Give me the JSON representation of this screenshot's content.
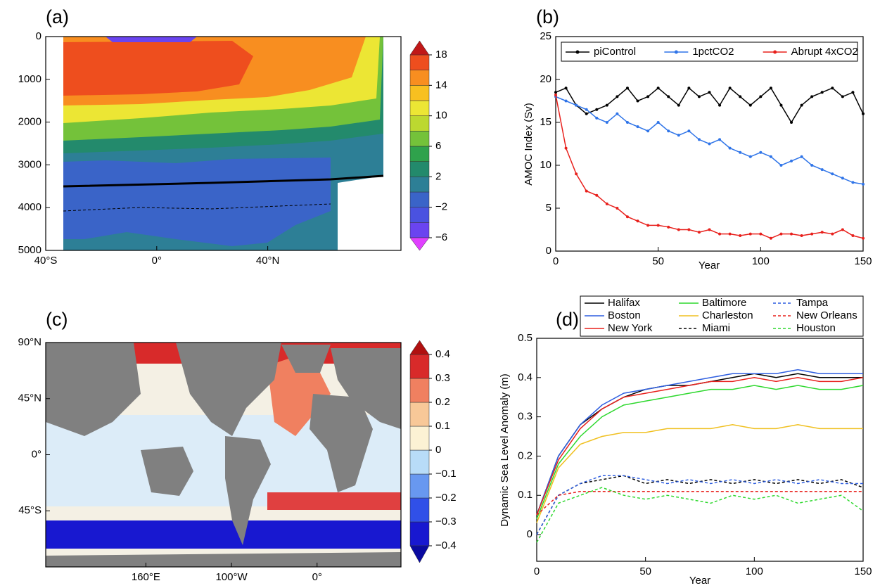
{
  "chart_data": [
    {
      "type": "contour",
      "title": "(a)",
      "xlim": [
        -40,
        88
      ],
      "xticks": [
        {
          "value": -40,
          "label": "40°S"
        },
        {
          "value": 0,
          "label": "0°"
        },
        {
          "value": 40,
          "label": "40°N"
        }
      ],
      "ylim": [
        0,
        5000
      ],
      "y_inverted": true,
      "yticks": [
        0,
        1000,
        2000,
        3000,
        4000,
        5000
      ],
      "colorbar": {
        "lim": [
          -6,
          18
        ],
        "ticks": [
          18,
          14,
          10,
          6,
          2,
          {
            "value": -2,
            "label": "−2"
          },
          {
            "value": -6,
            "label": "−6"
          }
        ],
        "colors": [
          "#6a44f0",
          "#4a52e0",
          "#3a64c8",
          "#2d7f96",
          "#238a6c",
          "#2fa24c",
          "#74c23a",
          "#bcd830",
          "#ece634",
          "#f8c020",
          "#f88e20",
          "#ee4e1e"
        ],
        "under": "#e040ff",
        "over": "#c01818"
      }
    },
    {
      "type": "line",
      "title": "(b)",
      "xlabel": "Year",
      "ylabel": "AMOC Index (Sv)",
      "markers": true,
      "legend": "top",
      "x": [
        0,
        5,
        10,
        15,
        20,
        25,
        30,
        35,
        40,
        45,
        50,
        55,
        60,
        65,
        70,
        75,
        80,
        85,
        90,
        95,
        100,
        105,
        110,
        115,
        120,
        125,
        130,
        135,
        140,
        145,
        150
      ],
      "xlim": [
        0,
        150
      ],
      "xticks": [
        0,
        50,
        100,
        150
      ],
      "ylim": [
        0,
        25
      ],
      "yticks": [
        0,
        5,
        10,
        15,
        20,
        25
      ],
      "series": [
        {
          "name": "piControl",
          "color": "#000000",
          "values": [
            18.5,
            19,
            17,
            16,
            16.5,
            17,
            18,
            19,
            17.5,
            18,
            19,
            18,
            17,
            19,
            18,
            18.5,
            17,
            19,
            18,
            17,
            18,
            19,
            17,
            15,
            17,
            18,
            18.5,
            19,
            18,
            18.5,
            16
          ]
        },
        {
          "name": "1pctCO2",
          "color": "#2f74e8",
          "values": [
            18,
            17.5,
            17,
            16.5,
            15.5,
            15,
            16,
            15,
            14.5,
            14,
            15,
            14,
            13.5,
            14,
            13,
            12.5,
            13,
            12,
            11.5,
            11,
            11.5,
            11,
            10,
            10.5,
            11,
            10,
            9.5,
            9,
            8.5,
            8,
            7.8
          ]
        },
        {
          "name": "Abrupt 4xCO2",
          "color": "#e8201c",
          "values": [
            18.2,
            12,
            9,
            7,
            6.5,
            5.5,
            5,
            4,
            3.5,
            3,
            3,
            2.8,
            2.5,
            2.5,
            2.2,
            2.5,
            2,
            2,
            1.8,
            2,
            2,
            1.5,
            2,
            2,
            1.8,
            2,
            2.2,
            2,
            2.5,
            1.8,
            1.5
          ]
        }
      ]
    },
    {
      "type": "map",
      "title": "(c)",
      "xlim": [
        43,
        458
      ],
      "xticks": [
        {
          "value": 160,
          "label": "160°E"
        },
        {
          "value": 260,
          "label": "100°W"
        },
        {
          "value": 360,
          "label": "0°"
        }
      ],
      "ylim": [
        -90,
        90
      ],
      "yticks": [
        {
          "value": 90,
          "label": "90°N"
        },
        {
          "value": 45,
          "label": "45°N"
        },
        {
          "value": 0,
          "label": "0°"
        },
        {
          "value": -45,
          "label": "45°S"
        }
      ],
      "colorbar": {
        "lim": [
          -0.4,
          0.4
        ],
        "ticks": [
          0.4,
          0.3,
          0.2,
          0.1,
          0,
          {
            "value": -0.1,
            "label": "−0.1"
          },
          {
            "value": -0.2,
            "label": "−0.2"
          },
          {
            "value": -0.3,
            "label": "−0.3"
          },
          {
            "value": -0.4,
            "label": "−0.4"
          }
        ],
        "colors": [
          "#1818d0",
          "#3050e8",
          "#6898f0",
          "#b8dcf8",
          "#fcf2d4",
          "#f8c898",
          "#f08060",
          "#d82a2a"
        ],
        "under": "#0a0aa0",
        "over": "#b01010"
      }
    },
    {
      "type": "line",
      "title": "(d)",
      "xlabel": "Year",
      "ylabel": "Dynamic Sea Level Anomaly (m)",
      "markers": false,
      "legend": "above",
      "x": [
        0,
        10,
        20,
        30,
        40,
        50,
        60,
        70,
        80,
        90,
        100,
        110,
        120,
        130,
        140,
        150
      ],
      "xlim": [
        0,
        150
      ],
      "xticks": [
        0,
        50,
        100,
        150
      ],
      "ylim": [
        -0.068,
        0.5
      ],
      "yticks": [
        0,
        0.1,
        0.2,
        0.3,
        0.4,
        0.5
      ],
      "series": [
        {
          "name": "Halifax",
          "color": "#000000",
          "dash": false,
          "values": [
            0.05,
            0.2,
            0.28,
            0.32,
            0.35,
            0.37,
            0.38,
            0.38,
            0.39,
            0.4,
            0.41,
            0.4,
            0.41,
            0.4,
            0.4,
            0.4
          ]
        },
        {
          "name": "Boston",
          "color": "#2f5fe0",
          "dash": false,
          "values": [
            0.05,
            0.2,
            0.28,
            0.33,
            0.36,
            0.37,
            0.38,
            0.39,
            0.4,
            0.41,
            0.41,
            0.41,
            0.42,
            0.41,
            0.41,
            0.41
          ]
        },
        {
          "name": "New York",
          "color": "#e8201c",
          "dash": false,
          "values": [
            0.05,
            0.19,
            0.27,
            0.32,
            0.35,
            0.36,
            0.37,
            0.38,
            0.39,
            0.39,
            0.4,
            0.39,
            0.4,
            0.39,
            0.39,
            0.4
          ]
        },
        {
          "name": "Baltimore",
          "color": "#2ed82e",
          "dash": false,
          "values": [
            0.04,
            0.18,
            0.25,
            0.3,
            0.33,
            0.34,
            0.35,
            0.36,
            0.37,
            0.37,
            0.38,
            0.37,
            0.38,
            0.37,
            0.37,
            0.38
          ]
        },
        {
          "name": "Charleston",
          "color": "#f0c020",
          "dash": false,
          "values": [
            0.03,
            0.17,
            0.23,
            0.25,
            0.26,
            0.26,
            0.27,
            0.27,
            0.27,
            0.28,
            0.27,
            0.27,
            0.28,
            0.27,
            0.27,
            0.27
          ]
        },
        {
          "name": "Miami",
          "color": "#000000",
          "dash": true,
          "values": [
            0.0,
            0.1,
            0.13,
            0.14,
            0.15,
            0.13,
            0.14,
            0.13,
            0.14,
            0.13,
            0.14,
            0.13,
            0.14,
            0.13,
            0.14,
            0.12
          ]
        },
        {
          "name": "Tampa",
          "color": "#2f5fe0",
          "dash": true,
          "values": [
            0.0,
            0.1,
            0.13,
            0.15,
            0.15,
            0.14,
            0.13,
            0.14,
            0.13,
            0.14,
            0.13,
            0.14,
            0.13,
            0.14,
            0.13,
            0.13
          ]
        },
        {
          "name": "New Orleans",
          "color": "#e8201c",
          "dash": true,
          "values": [
            0.05,
            0.1,
            0.11,
            0.11,
            0.11,
            0.11,
            0.11,
            0.11,
            0.11,
            0.11,
            0.11,
            0.11,
            0.11,
            0.11,
            0.11,
            0.11
          ]
        },
        {
          "name": "Houston",
          "color": "#2ed82e",
          "dash": true,
          "values": [
            -0.02,
            0.08,
            0.1,
            0.12,
            0.1,
            0.09,
            0.1,
            0.09,
            0.08,
            0.1,
            0.09,
            0.1,
            0.08,
            0.09,
            0.1,
            0.06
          ]
        }
      ]
    }
  ]
}
